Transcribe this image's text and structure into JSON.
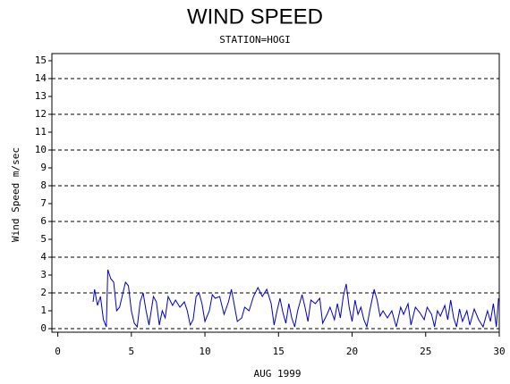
{
  "chart_data": {
    "type": "line",
    "title": "WIND SPEED",
    "subtitle": "STATION=HOGI",
    "ylabel": "Wind Speed m/sec",
    "xlabel": "AUG 1999",
    "xlim": [
      -0.4,
      30
    ],
    "ylim": [
      -0.2,
      15.4
    ],
    "xticks": [
      0,
      5,
      10,
      15,
      20,
      25,
      30
    ],
    "yticks": [
      0,
      1,
      2,
      3,
      4,
      5,
      6,
      7,
      8,
      9,
      10,
      11,
      12,
      13,
      14,
      15
    ],
    "grid_lines": [
      0,
      2,
      4,
      6,
      8,
      10,
      12,
      14
    ],
    "series": [
      {
        "color": "#0000cc",
        "x": [
          2.4,
          2.5,
          2.7,
          2.9,
          3.1,
          3.3,
          3.4,
          3.6,
          3.8,
          4.0,
          4.2,
          4.6,
          4.8,
          5.0,
          5.2,
          5.4,
          5.6,
          5.8,
          6.0,
          6.2,
          6.5,
          6.7,
          6.9,
          7.1,
          7.3,
          7.5,
          7.8,
          8.0,
          8.3,
          8.6,
          8.8,
          9.0,
          9.2,
          9.4,
          9.6,
          9.8,
          10.0,
          10.3,
          10.5,
          10.7,
          11.0,
          11.3,
          11.6,
          11.8,
          12.0,
          12.2,
          12.5,
          12.7,
          13.0,
          13.3,
          13.6,
          13.9,
          14.2,
          14.5,
          14.7,
          14.9,
          15.1,
          15.3,
          15.5,
          15.7,
          15.9,
          16.1,
          16.3,
          16.6,
          16.8,
          17.0,
          17.2,
          17.5,
          17.8,
          18.0,
          18.3,
          18.5,
          18.8,
          19.0,
          19.2,
          19.4,
          19.6,
          19.8,
          20.0,
          20.2,
          20.4,
          20.6,
          20.8,
          21.0,
          21.2,
          21.5,
          21.7,
          21.9,
          22.1,
          22.4,
          22.7,
          23.0,
          23.3,
          23.5,
          23.8,
          24.0,
          24.3,
          24.6,
          24.9,
          25.1,
          25.4,
          25.6,
          25.8,
          26.0,
          26.3,
          26.5,
          26.7,
          26.9,
          27.1,
          27.3,
          27.5,
          27.8,
          28.0,
          28.3,
          28.6,
          28.9,
          29.2,
          29.4,
          29.6,
          29.8,
          29.95
        ],
        "values": [
          1.5,
          2.2,
          1.3,
          1.8,
          0.5,
          0.1,
          3.3,
          2.8,
          2.6,
          1.0,
          1.2,
          2.6,
          2.4,
          1.0,
          0.3,
          0.1,
          1.5,
          2.0,
          1.0,
          0.2,
          1.8,
          1.5,
          0.2,
          1.0,
          0.6,
          1.8,
          1.3,
          1.6,
          1.2,
          1.5,
          1.0,
          0.2,
          0.5,
          1.8,
          2.0,
          1.4,
          0.4,
          1.0,
          1.9,
          1.7,
          1.8,
          0.8,
          1.5,
          2.2,
          1.3,
          0.4,
          0.6,
          1.2,
          1.0,
          1.8,
          2.3,
          1.8,
          2.2,
          1.4,
          0.2,
          1.0,
          1.7,
          0.9,
          0.3,
          1.4,
          0.6,
          0.1,
          1.0,
          1.9,
          1.2,
          0.4,
          1.6,
          1.4,
          1.7,
          0.3,
          0.8,
          1.2,
          0.5,
          1.4,
          0.6,
          1.8,
          2.5,
          1.2,
          0.4,
          1.6,
          0.8,
          1.2,
          0.5,
          0.1,
          1.0,
          2.2,
          1.6,
          0.7,
          1.0,
          0.6,
          1.0,
          0.1,
          1.2,
          0.8,
          1.4,
          0.2,
          1.2,
          0.9,
          0.5,
          1.2,
          0.8,
          0.1,
          1.0,
          0.7,
          1.3,
          0.5,
          1.6,
          0.6,
          0.1,
          1.1,
          0.4,
          1.0,
          0.2,
          1.1,
          0.5,
          0.1,
          1.0,
          0.4,
          1.4,
          0.1,
          1.7
        ]
      }
    ]
  }
}
